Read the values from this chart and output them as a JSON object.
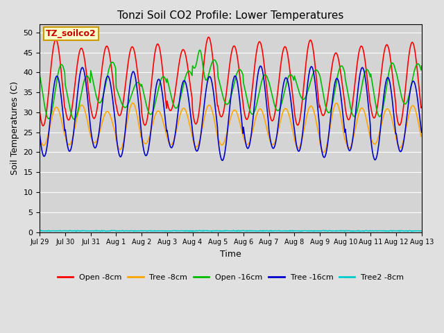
{
  "title": "Tonzi Soil CO2 Profile: Lower Temperatures",
  "xlabel": "Time",
  "ylabel": "Soil Temperatures (C)",
  "ylim": [
    0,
    52
  ],
  "yticks": [
    0,
    5,
    10,
    15,
    20,
    25,
    30,
    35,
    40,
    45,
    50
  ],
  "x_tick_labels": [
    "Jul 29",
    "Jul 30",
    "Jul 31",
    "Aug 1",
    "Aug 2",
    "Aug 3",
    "Aug 4",
    "Aug 5",
    "Aug 6",
    "Aug 7",
    "Aug 8",
    "Aug 9",
    "Aug 10",
    "Aug 11",
    "Aug 12",
    "Aug 13"
  ],
  "fig_bg_color": "#e0e0e0",
  "plot_bg_color": "#d4d4d4",
  "grid_color": "#ffffff",
  "series": {
    "open_8cm": {
      "label": "Open -8cm",
      "color": "#ff0000",
      "linewidth": 1.2
    },
    "tree_8cm": {
      "label": "Tree -8cm",
      "color": "#ffa500",
      "linewidth": 1.2
    },
    "open_16cm": {
      "label": "Open -16cm",
      "color": "#00bb00",
      "linewidth": 1.2
    },
    "tree_16cm": {
      "label": "Tree -16cm",
      "color": "#0000cc",
      "linewidth": 1.2
    },
    "tree2_8cm": {
      "label": "Tree2 -8cm",
      "color": "#00cccc",
      "linewidth": 1.2
    }
  },
  "annotation_label": "TZ_soilco2",
  "annotation_color": "#cc0000",
  "annotation_bg": "#ffffcc",
  "annotation_edge": "#cc9900"
}
